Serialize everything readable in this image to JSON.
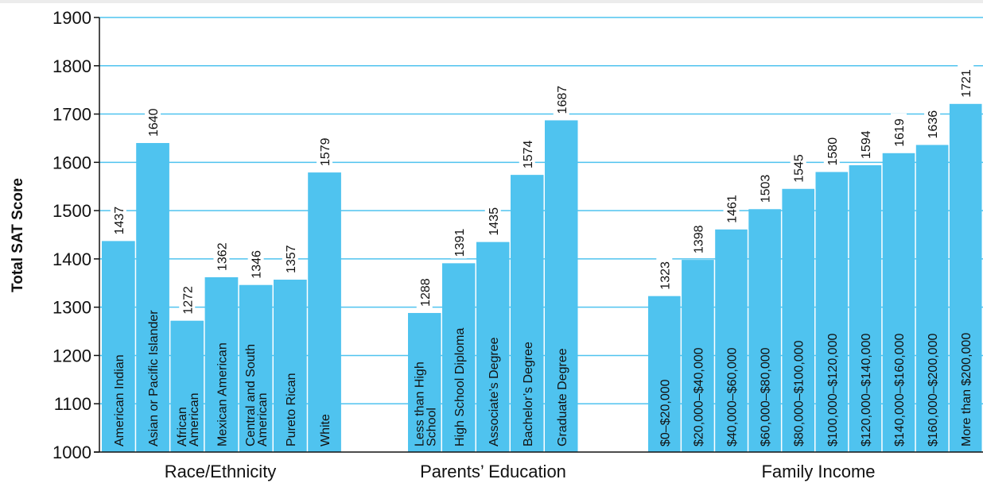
{
  "chart_data": {
    "type": "bar",
    "ylabel": "Total SAT Score",
    "ylim": [
      1000,
      1900
    ],
    "yticks": [
      1000,
      1100,
      1200,
      1300,
      1400,
      1500,
      1600,
      1700,
      1800,
      1900
    ],
    "grid": true,
    "bar_color": "#4fc3ef",
    "groups": [
      {
        "name": "Race/Ethnicity",
        "bars": [
          {
            "label": [
              "American Indian"
            ],
            "value": 1437
          },
          {
            "label": [
              "Asian or Pacific Islander"
            ],
            "value": 1640
          },
          {
            "label": [
              "African",
              "American"
            ],
            "value": 1272
          },
          {
            "label": [
              "Mexican American"
            ],
            "value": 1362
          },
          {
            "label": [
              "Central and South",
              "American"
            ],
            "value": 1346
          },
          {
            "label": [
              "Pureto Rican"
            ],
            "value": 1357
          },
          {
            "label": [
              "White"
            ],
            "value": 1579
          }
        ]
      },
      {
        "name": "Parents’ Education",
        "bars": [
          {
            "label": [
              "Less than High",
              "School"
            ],
            "value": 1288
          },
          {
            "label": [
              "High School Diploma"
            ],
            "value": 1391
          },
          {
            "label": [
              "Associate’s Degree"
            ],
            "value": 1435
          },
          {
            "label": [
              "Bachelor’s Degree"
            ],
            "value": 1574
          },
          {
            "label": [
              "Graduate Degree"
            ],
            "value": 1687
          }
        ]
      },
      {
        "name": "Family Income",
        "bars": [
          {
            "label": [
              "$0–$20,000"
            ],
            "value": 1323
          },
          {
            "label": [
              "$20,000–$40,000"
            ],
            "value": 1398
          },
          {
            "label": [
              "$40,000–$60,000"
            ],
            "value": 1461
          },
          {
            "label": [
              "$60,000–$80,000"
            ],
            "value": 1503
          },
          {
            "label": [
              "$80,000–$100,000"
            ],
            "value": 1545
          },
          {
            "label": [
              "$100,000–$120,000"
            ],
            "value": 1580
          },
          {
            "label": [
              "$120,000–$140,000"
            ],
            "value": 1594
          },
          {
            "label": [
              "$140,000–$160,000"
            ],
            "value": 1619
          },
          {
            "label": [
              "$160,000–$200,000"
            ],
            "value": 1636
          },
          {
            "label": [
              "More than $200,000"
            ],
            "value": 1721
          }
        ]
      }
    ]
  }
}
